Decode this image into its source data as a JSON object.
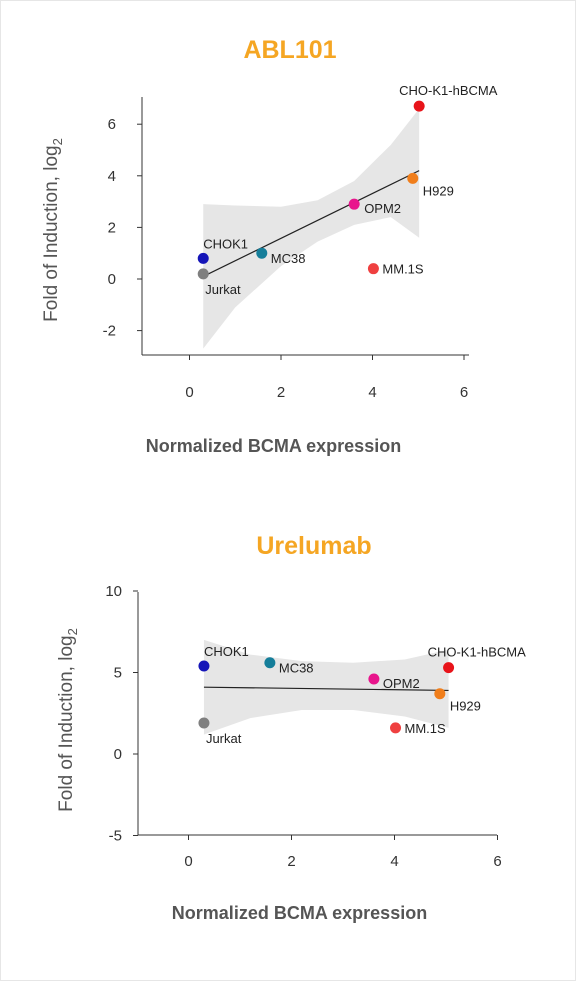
{
  "accent_color": "#f5a623",
  "chart_data": [
    {
      "type": "scatter",
      "title": "ABL101",
      "xlabel": "Normalized BCMA expression",
      "ylabel": "Fold of Induction, log",
      "ylabel_subscript": "2",
      "xlim": [
        -1,
        6.1
      ],
      "ylim": [
        -2.9,
        7.1
      ],
      "xticks": [
        0,
        2,
        4,
        6
      ],
      "yticks": [
        -2,
        0,
        2,
        4,
        6
      ],
      "grid": false,
      "points": [
        {
          "label": "CHO-K1-hBCMA",
          "x": 5.02,
          "y": 6.7,
          "color": "#e8141a"
        },
        {
          "label": "H929",
          "x": 4.88,
          "y": 3.9,
          "color": "#f07e1b"
        },
        {
          "label": "OPM2",
          "x": 3.6,
          "y": 2.9,
          "color": "#e8158c"
        },
        {
          "label": "MM.1S",
          "x": 4.02,
          "y": 0.4,
          "color": "#ef4040"
        },
        {
          "label": "MC38",
          "x": 1.58,
          "y": 1.0,
          "color": "#157e9a"
        },
        {
          "label": "CHOK1",
          "x": 0.3,
          "y": 0.8,
          "color": "#1515b8"
        },
        {
          "label": "Jurkat",
          "x": 0.3,
          "y": 0.2,
          "color": "#7f7f7f"
        }
      ],
      "regression": {
        "x": [
          0.3,
          5.02
        ],
        "y": [
          0.1,
          4.2
        ]
      },
      "confidence_band": {
        "x": [
          0.3,
          1.0,
          2.0,
          2.8,
          3.6,
          4.4,
          5.02
        ],
        "upper": [
          2.9,
          2.85,
          2.8,
          3.05,
          3.8,
          5.2,
          6.6
        ],
        "lower": [
          -2.7,
          -1.1,
          0.5,
          1.45,
          2.1,
          2.4,
          1.6
        ]
      }
    },
    {
      "type": "scatter",
      "title": "Urelumab",
      "xlabel": "Normalized BCMA expression",
      "ylabel": "Fold of Induction, log",
      "ylabel_subscript": "2",
      "xlim": [
        -1,
        6.1
      ],
      "ylim": [
        -5,
        10
      ],
      "xticks": [
        0,
        2,
        4,
        6
      ],
      "yticks": [
        -5,
        0,
        5,
        10
      ],
      "grid": false,
      "points": [
        {
          "label": "CHOK1",
          "x": 0.3,
          "y": 5.4,
          "color": "#1515b8"
        },
        {
          "label": "MC38",
          "x": 1.58,
          "y": 5.6,
          "color": "#157e9a"
        },
        {
          "label": "CHO-K1-hBCMA",
          "x": 5.05,
          "y": 5.3,
          "color": "#e8141a"
        },
        {
          "label": "OPM2",
          "x": 3.6,
          "y": 4.6,
          "color": "#e8158c"
        },
        {
          "label": "H929",
          "x": 4.88,
          "y": 3.7,
          "color": "#f07e1b"
        },
        {
          "label": "Jurkat",
          "x": 0.3,
          "y": 1.9,
          "color": "#7f7f7f"
        },
        {
          "label": "MM.1S",
          "x": 4.02,
          "y": 1.6,
          "color": "#ef4040"
        }
      ],
      "regression": {
        "x": [
          0.3,
          5.05
        ],
        "y": [
          4.1,
          3.9
        ]
      },
      "confidence_band": {
        "x": [
          0.3,
          1.2,
          2.2,
          3.2,
          4.2,
          5.05
        ],
        "upper": [
          7.0,
          6.1,
          5.7,
          5.6,
          5.8,
          6.4
        ],
        "lower": [
          1.2,
          2.2,
          2.7,
          2.7,
          2.3,
          1.6
        ]
      }
    }
  ]
}
